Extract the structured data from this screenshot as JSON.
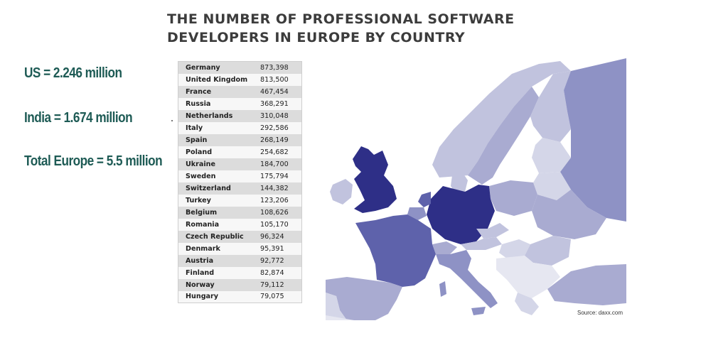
{
  "title_lines": [
    "THE NUMBER OF PROFESSIONAL SOFTWARE",
    "DEVELOPERS IN EUROPE BY COUNTRY"
  ],
  "stats": [
    "US = 2.246 million",
    "India = 1.674 million",
    "Total Europe = 5.5 million"
  ],
  "rows": [
    {
      "country": "Germany",
      "value": "873,398"
    },
    {
      "country": "United Kingdom",
      "value": "813,500"
    },
    {
      "country": "France",
      "value": "467,454"
    },
    {
      "country": "Russia",
      "value": "368,291"
    },
    {
      "country": "Netherlands",
      "value": "310,048"
    },
    {
      "country": "Italy",
      "value": "292,586"
    },
    {
      "country": "Spain",
      "value": "268,149"
    },
    {
      "country": "Poland",
      "value": "254,682"
    },
    {
      "country": "Ukraine",
      "value": "184,700"
    },
    {
      "country": "Sweden",
      "value": "175,794"
    },
    {
      "country": "Switzerland",
      "value": "144,382"
    },
    {
      "country": "Turkey",
      "value": "123,206"
    },
    {
      "country": "Belgium",
      "value": "108,626"
    },
    {
      "country": "Romania",
      "value": "105,170"
    },
    {
      "country": "Czech Republic",
      "value": "96,324"
    },
    {
      "country": "Denmark",
      "value": "95,391"
    },
    {
      "country": "Austria",
      "value": "92,772"
    },
    {
      "country": "Finland",
      "value": "82,874"
    },
    {
      "country": "Norway",
      "value": "79,112"
    },
    {
      "country": "Hungary",
      "value": "79,075"
    }
  ],
  "map": {
    "source": "Source: daxx.com",
    "colors": {
      "sea": "#ffffff",
      "lightest": "#e6e7f1",
      "light": "#d4d6e8",
      "mid_light": "#c1c3de",
      "mid": "#a9abd1",
      "mid_dark": "#8e92c5",
      "strong": "#5e62ab",
      "darkest": "#2e2f87"
    }
  }
}
